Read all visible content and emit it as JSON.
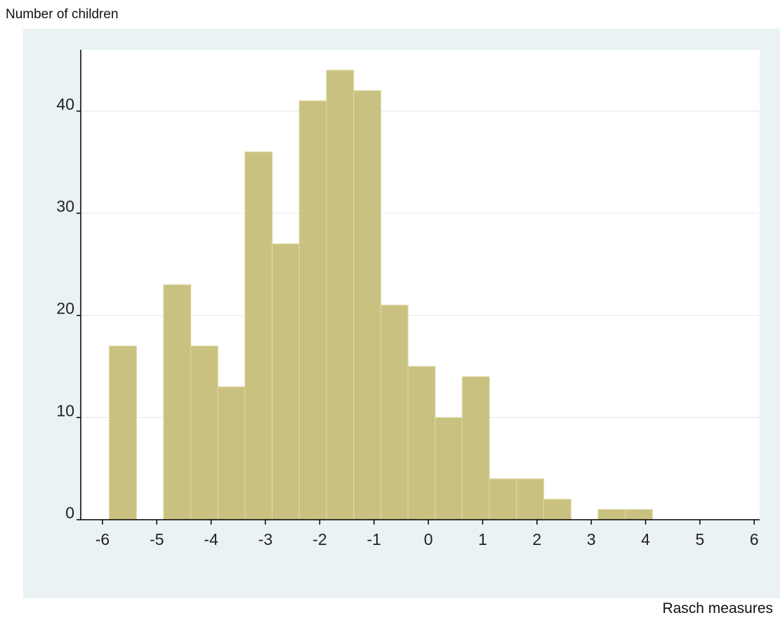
{
  "chart_data": {
    "type": "bar",
    "ylabel": "Number of children",
    "xlabel": "Rasch measures",
    "xlim": [
      -6.4,
      6.1
    ],
    "ylim": [
      0,
      46
    ],
    "xticks": [
      -6,
      -5,
      -4,
      -3,
      -2,
      -1,
      0,
      1,
      2,
      3,
      4,
      5,
      6
    ],
    "yticks": [
      0,
      10,
      20,
      30,
      40
    ],
    "grid": true,
    "bin_width": 0.5,
    "bins": [
      {
        "start": -5.875,
        "count": 17
      },
      {
        "start": -5.375,
        "count": 0
      },
      {
        "start": -4.875,
        "count": 23
      },
      {
        "start": -4.375,
        "count": 17
      },
      {
        "start": -3.875,
        "count": 13
      },
      {
        "start": -3.375,
        "count": 36
      },
      {
        "start": -2.875,
        "count": 27
      },
      {
        "start": -2.375,
        "count": 41
      },
      {
        "start": -1.875,
        "count": 44
      },
      {
        "start": -1.375,
        "count": 42
      },
      {
        "start": -0.875,
        "count": 21
      },
      {
        "start": -0.375,
        "count": 15
      },
      {
        "start": 0.125,
        "count": 10
      },
      {
        "start": 0.625,
        "count": 14
      },
      {
        "start": 1.125,
        "count": 4
      },
      {
        "start": 1.625,
        "count": 4
      },
      {
        "start": 2.125,
        "count": 2
      },
      {
        "start": 2.625,
        "count": 0
      },
      {
        "start": 3.125,
        "count": 1
      },
      {
        "start": 3.625,
        "count": 1
      }
    ]
  },
  "colors": {
    "bar_fill": "#c9c17f",
    "bar_edge": "#dcd6a3",
    "plot_bg": "#ffffff",
    "outer_bg": "#eaf2f3",
    "grid": "#e5ecee",
    "axis": "#000000"
  }
}
